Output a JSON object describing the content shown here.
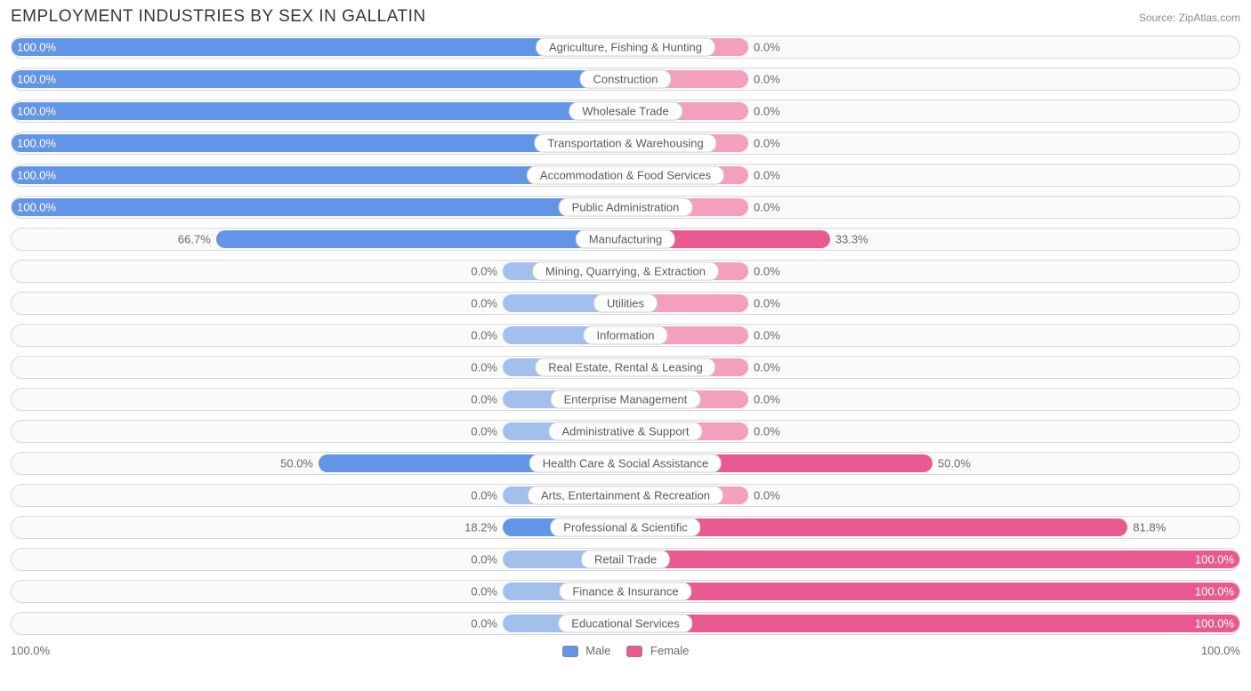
{
  "title": "EMPLOYMENT INDUSTRIES BY SEX IN GALLATIN",
  "source": "Source: ZipAtlas.com",
  "axis": {
    "left": "100.0%",
    "right": "100.0%"
  },
  "legend": {
    "male": {
      "label": "Male",
      "color": "#6395e6"
    },
    "female": {
      "label": "Female",
      "color": "#e85a90"
    }
  },
  "colors": {
    "male": "#6395e6",
    "male_faded": "#a3c0ed",
    "female": "#e85a90",
    "female_faded": "#f2a0bd",
    "row_border": "#d9d9d9",
    "row_bg": "#fafafa",
    "text": "#6a6a6a"
  },
  "min_bar_pct": 20,
  "rows": [
    {
      "label": "Agriculture, Fishing & Hunting",
      "male": 100.0,
      "female": 0.0
    },
    {
      "label": "Construction",
      "male": 100.0,
      "female": 0.0
    },
    {
      "label": "Wholesale Trade",
      "male": 100.0,
      "female": 0.0
    },
    {
      "label": "Transportation & Warehousing",
      "male": 100.0,
      "female": 0.0
    },
    {
      "label": "Accommodation & Food Services",
      "male": 100.0,
      "female": 0.0
    },
    {
      "label": "Public Administration",
      "male": 100.0,
      "female": 0.0
    },
    {
      "label": "Manufacturing",
      "male": 66.7,
      "female": 33.3
    },
    {
      "label": "Mining, Quarrying, & Extraction",
      "male": 0.0,
      "female": 0.0
    },
    {
      "label": "Utilities",
      "male": 0.0,
      "female": 0.0
    },
    {
      "label": "Information",
      "male": 0.0,
      "female": 0.0
    },
    {
      "label": "Real Estate, Rental & Leasing",
      "male": 0.0,
      "female": 0.0
    },
    {
      "label": "Enterprise Management",
      "male": 0.0,
      "female": 0.0
    },
    {
      "label": "Administrative & Support",
      "male": 0.0,
      "female": 0.0
    },
    {
      "label": "Health Care & Social Assistance",
      "male": 50.0,
      "female": 50.0
    },
    {
      "label": "Arts, Entertainment & Recreation",
      "male": 0.0,
      "female": 0.0
    },
    {
      "label": "Professional & Scientific",
      "male": 18.2,
      "female": 81.8
    },
    {
      "label": "Retail Trade",
      "male": 0.0,
      "female": 100.0
    },
    {
      "label": "Finance & Insurance",
      "male": 0.0,
      "female": 100.0
    },
    {
      "label": "Educational Services",
      "male": 0.0,
      "female": 100.0
    }
  ]
}
